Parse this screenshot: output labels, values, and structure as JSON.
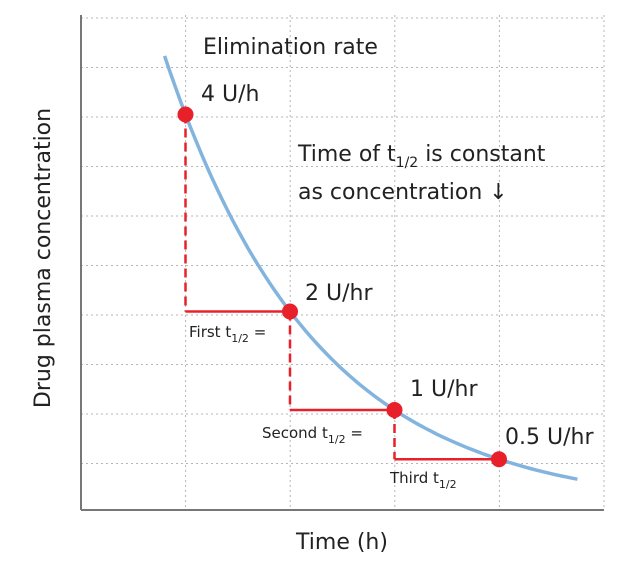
{
  "chart_data": {
    "type": "line",
    "xlabel": "Time (h)",
    "ylabel": "Drug plasma concentration",
    "grid": true,
    "x": [
      1,
      2,
      3,
      4
    ],
    "values": [
      4,
      2,
      1,
      0.5
    ],
    "point_labels": [
      "4 U/h",
      "2 U/hr",
      "1 U/hr",
      "0.5 U/hr"
    ],
    "halflife_labels": [
      {
        "prefix": "First t",
        "sub": "1/2",
        "suffix": " ="
      },
      {
        "prefix": "Second t",
        "sub": "1/2",
        "suffix": " ="
      },
      {
        "prefix": "Third t",
        "sub": "1/2",
        "suffix": ""
      }
    ],
    "annotations": {
      "title": "Elimination rate",
      "note_line1_prefix": "Time of t",
      "note_line1_sub": "1/2",
      "note_line1_suffix": " is constant",
      "note_line2": "as concentration ↓"
    },
    "colors": {
      "curve": "#82b4de",
      "points": "#e8202a",
      "steps": "#e8202a",
      "grid": "#b5b5b5",
      "axis": "#777777"
    }
  }
}
